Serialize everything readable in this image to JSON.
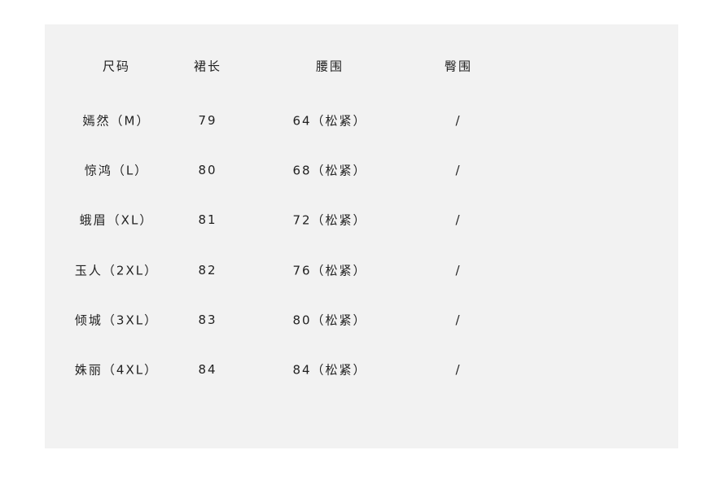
{
  "table": {
    "headers": [
      "尺码",
      "裙长",
      "腰围",
      "臀围"
    ],
    "rows": [
      [
        "嫣然（M）",
        "79",
        "64（松紧）",
        "/"
      ],
      [
        "惊鸿（L）",
        "80",
        "68（松紧）",
        "/"
      ],
      [
        "蛾眉（XL）",
        "81",
        "72（松紧）",
        "/"
      ],
      [
        "玉人（2XL）",
        "82",
        "76（松紧）",
        "/"
      ],
      [
        "倾城（3XL）",
        "83",
        "80（松紧）",
        "/"
      ],
      [
        "姝丽（4XL）",
        "84",
        "84（松紧）",
        "/"
      ]
    ]
  },
  "colors": {
    "background": "#f2f2f2",
    "text": "#222222"
  }
}
